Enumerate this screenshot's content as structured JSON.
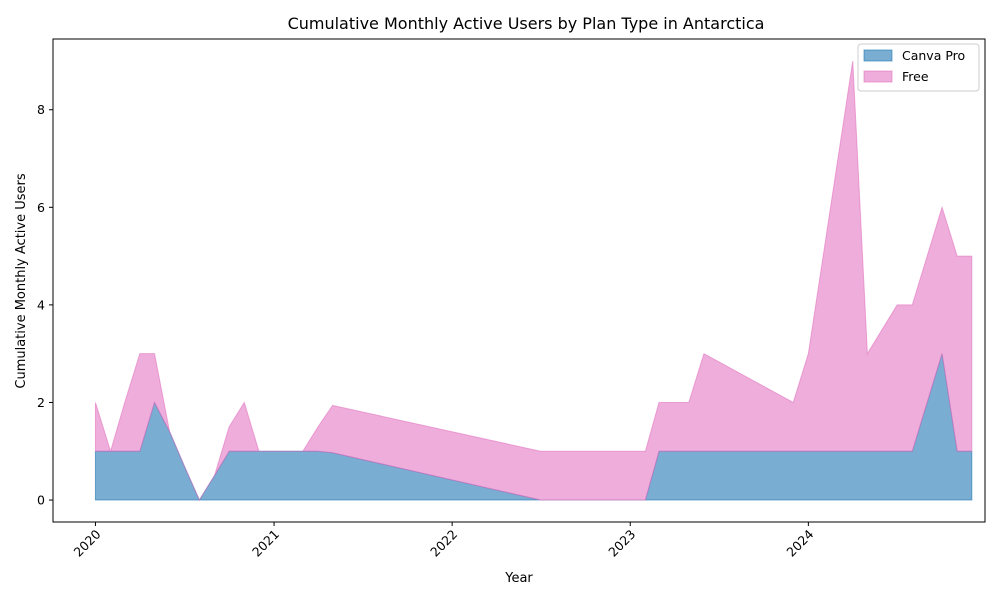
{
  "chart_data": {
    "type": "area",
    "stacked": true,
    "title": "Cumulative Monthly Active Users by Plan Type in Antarctica",
    "xlabel": "Year",
    "ylabel": "Cumulative Monthly Active Users",
    "x_ticks": [
      "2020",
      "2021",
      "2022",
      "2023",
      "2024"
    ],
    "y_ticks": [
      "0",
      "2",
      "4",
      "6",
      "8"
    ],
    "xlim": [
      "2019-10-06",
      "2024-12-28"
    ],
    "ylim": [
      -0.45,
      9.45
    ],
    "grid": false,
    "legend_position": "top-right",
    "series": [
      {
        "name": "Canva Pro",
        "color": "#1f77b4",
        "points": [
          [
            "2020-01-01",
            1
          ],
          [
            "2020-02-01",
            1
          ],
          [
            "2020-03-01",
            1
          ],
          [
            "2020-04-01",
            1
          ],
          [
            "2020-05-01",
            2
          ],
          [
            "2020-06-01",
            1.4
          ],
          [
            "2020-07-01",
            0.7
          ],
          [
            "2020-08-01",
            0
          ],
          [
            "2020-09-01",
            0.5
          ],
          [
            "2020-10-01",
            1
          ],
          [
            "2020-11-01",
            1
          ],
          [
            "2020-12-01",
            1
          ],
          [
            "2021-01-01",
            1
          ],
          [
            "2021-02-01",
            1
          ],
          [
            "2021-03-01",
            1
          ],
          [
            "2021-04-01",
            1
          ],
          [
            "2021-05-01",
            0.97
          ],
          [
            "2022-07-01",
            0
          ],
          [
            "2023-02-01",
            0
          ],
          [
            "2023-03-01",
            1
          ],
          [
            "2023-04-01",
            1
          ],
          [
            "2023-05-01",
            1
          ],
          [
            "2023-06-01",
            1
          ],
          [
            "2023-12-01",
            1
          ],
          [
            "2024-01-01",
            1
          ],
          [
            "2024-04-01",
            1
          ],
          [
            "2024-05-01",
            1
          ],
          [
            "2024-07-01",
            1
          ],
          [
            "2024-08-01",
            1
          ],
          [
            "2024-10-01",
            3
          ],
          [
            "2024-11-01",
            1
          ],
          [
            "2024-12-01",
            1
          ]
        ]
      },
      {
        "name": "Free",
        "color": "#e377c2",
        "points": [
          [
            "2020-01-01",
            1
          ],
          [
            "2020-02-01",
            0
          ],
          [
            "2020-03-01",
            1
          ],
          [
            "2020-04-01",
            2
          ],
          [
            "2020-05-01",
            1
          ],
          [
            "2020-06-01",
            0
          ],
          [
            "2020-07-01",
            0
          ],
          [
            "2020-08-01",
            0
          ],
          [
            "2020-09-01",
            0
          ],
          [
            "2020-10-01",
            0.5
          ],
          [
            "2020-11-01",
            1
          ],
          [
            "2020-12-01",
            0
          ],
          [
            "2021-01-01",
            0
          ],
          [
            "2021-02-01",
            0
          ],
          [
            "2021-03-01",
            0
          ],
          [
            "2021-04-01",
            0.5
          ],
          [
            "2021-05-01",
            0.97
          ],
          [
            "2022-07-01",
            1
          ],
          [
            "2023-02-01",
            1
          ],
          [
            "2023-03-01",
            1
          ],
          [
            "2023-04-01",
            1
          ],
          [
            "2023-05-01",
            1
          ],
          [
            "2023-06-01",
            2
          ],
          [
            "2023-12-01",
            1
          ],
          [
            "2024-01-01",
            2
          ],
          [
            "2024-04-01",
            8
          ],
          [
            "2024-05-01",
            2
          ],
          [
            "2024-07-01",
            3
          ],
          [
            "2024-08-01",
            3
          ],
          [
            "2024-10-01",
            3
          ],
          [
            "2024-11-01",
            4
          ],
          [
            "2024-12-01",
            4
          ]
        ]
      }
    ]
  }
}
